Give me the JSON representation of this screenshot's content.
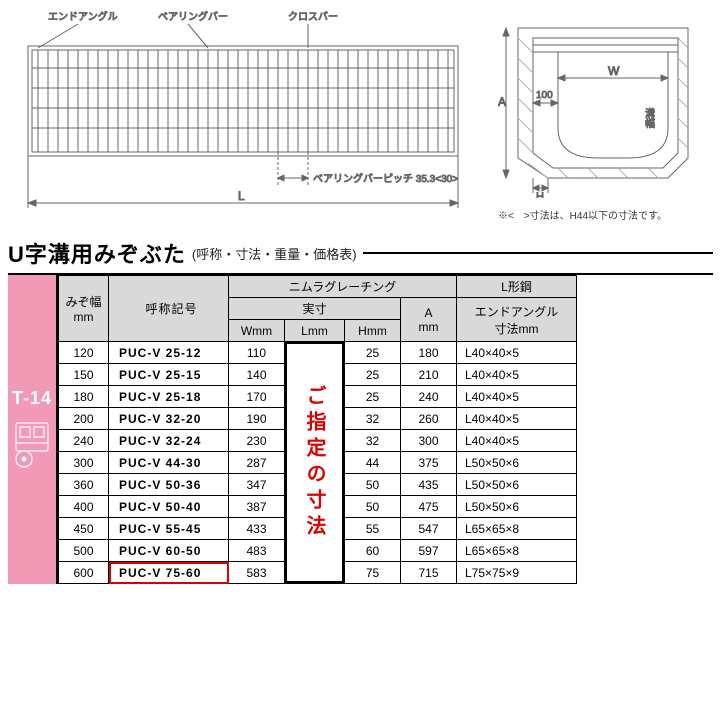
{
  "diagram": {
    "labels": {
      "end_angle": "エンドアングル",
      "bearing_bar": "ベアリングバー",
      "cross_bar": "クロスバー",
      "bearing_pitch": "ベアリングバーピッチ 35.3<30>",
      "dim_L": "L",
      "dim_A": "A",
      "dim_W": "W",
      "dim_H": "H",
      "dim_100": "100",
      "mizo_width_v": "溝幅"
    },
    "note": "※<　>寸法は、H44以下の寸法です。",
    "colors": {
      "stroke": "#666666",
      "hatch": "#b0b0b0",
      "text": "#333333"
    }
  },
  "title": {
    "main": "U字溝用みぞぶた",
    "sub": "(呼称・寸法・重量・価格表)"
  },
  "side_tab": {
    "label": "T-14",
    "bg": "#f199b5",
    "label_color": "#ffffff"
  },
  "table": {
    "headers": {
      "mizo": "みぞ幅\nmm",
      "ref": "呼称記号",
      "group_nimura": "ニムラグレーチング",
      "group_jissun": "実寸",
      "W": "Wmm",
      "L": "Lmm",
      "H": "Hmm",
      "A": "A\nmm",
      "lsteel_group": "L形鋼",
      "lsteel": "エンドアングル\n寸法mm"
    },
    "l_overlay": "ご指定の寸法",
    "highlight_ref_index": 10,
    "rows": [
      {
        "mizo": "120",
        "ref": "PUC-V  25-12",
        "W": "110",
        "H": "25",
        "A": "180",
        "lsteel": "L40×40×5"
      },
      {
        "mizo": "150",
        "ref": "PUC-V  25-15",
        "W": "140",
        "H": "25",
        "A": "210",
        "lsteel": "L40×40×5"
      },
      {
        "mizo": "180",
        "ref": "PUC-V  25-18",
        "W": "170",
        "H": "25",
        "A": "240",
        "lsteel": "L40×40×5"
      },
      {
        "mizo": "200",
        "ref": "PUC-V  32-20",
        "W": "190",
        "H": "32",
        "A": "260",
        "lsteel": "L40×40×5"
      },
      {
        "mizo": "240",
        "ref": "PUC-V  32-24",
        "W": "230",
        "H": "32",
        "A": "300",
        "lsteel": "L40×40×5"
      },
      {
        "mizo": "300",
        "ref": "PUC-V  44-30",
        "W": "287",
        "H": "44",
        "A": "375",
        "lsteel": "L50×50×6"
      },
      {
        "mizo": "360",
        "ref": "PUC-V  50-36",
        "W": "347",
        "H": "50",
        "A": "435",
        "lsteel": "L50×50×6"
      },
      {
        "mizo": "400",
        "ref": "PUC-V  50-40",
        "W": "387",
        "H": "50",
        "A": "475",
        "lsteel": "L50×50×6"
      },
      {
        "mizo": "450",
        "ref": "PUC-V  55-45",
        "W": "433",
        "H": "55",
        "A": "547",
        "lsteel": "L65×65×8"
      },
      {
        "mizo": "500",
        "ref": "PUC-V  60-50",
        "W": "483",
        "H": "60",
        "A": "597",
        "lsteel": "L65×65×8"
      },
      {
        "mizo": "600",
        "ref": "PUC-V  75-60",
        "W": "583",
        "H": "75",
        "A": "715",
        "lsteel": "L75×75×9"
      }
    ]
  }
}
